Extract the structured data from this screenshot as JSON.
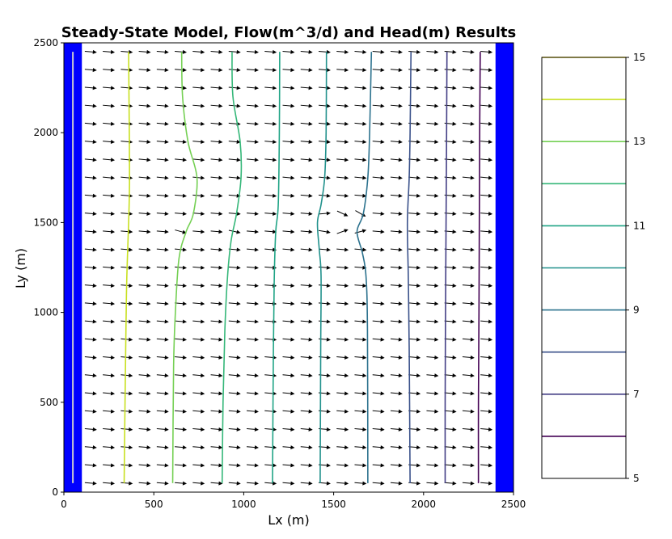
{
  "chart_data": {
    "type": "contour",
    "title": "Steady-State Model, Flow(m^3/d) and Head(m) Results",
    "xlabel": "Lx (m)",
    "ylabel": "Ly (m)",
    "xlim": [
      0,
      2500
    ],
    "ylim": [
      0,
      2500
    ],
    "xticks": [
      "0",
      "500",
      "1000",
      "1500",
      "2000",
      "2500"
    ],
    "yticks": [
      "0",
      "500",
      "1000",
      "1500",
      "2000",
      "2500"
    ],
    "boundaries": {
      "left": {
        "x": [
          0,
          100
        ],
        "color": "#0000ff"
      },
      "right": {
        "x": [
          2400,
          2500
        ],
        "color": "#0000ff"
      },
      "well_line": {
        "x": 50,
        "y": [
          50,
          2450
        ],
        "color": "#cccccc"
      }
    },
    "contours": [
      {
        "level": 14,
        "color": "#c8e020",
        "points": [
          [
            360,
            2450
          ],
          [
            362,
            2200
          ],
          [
            365,
            1750
          ],
          [
            360,
            1500
          ],
          [
            350,
            1200
          ],
          [
            345,
            900
          ],
          [
            340,
            500
          ],
          [
            335,
            50
          ]
        ]
      },
      {
        "level": 13,
        "color": "#75d054",
        "points": [
          [
            655,
            2450
          ],
          [
            660,
            2200
          ],
          [
            690,
            1950
          ],
          [
            740,
            1750
          ],
          [
            720,
            1550
          ],
          [
            680,
            1450
          ],
          [
            640,
            1300
          ],
          [
            620,
            1000
          ],
          [
            610,
            700
          ],
          [
            605,
            50
          ]
        ]
      },
      {
        "level": 12,
        "color": "#35b779",
        "points": [
          [
            935,
            2450
          ],
          [
            940,
            2200
          ],
          [
            980,
            1950
          ],
          [
            985,
            1750
          ],
          [
            960,
            1550
          ],
          [
            930,
            1400
          ],
          [
            910,
            1200
          ],
          [
            895,
            900
          ],
          [
            885,
            500
          ],
          [
            880,
            50
          ]
        ]
      },
      {
        "level": 11,
        "color": "#20a486",
        "points": [
          [
            1200,
            2450
          ],
          [
            1198,
            2000
          ],
          [
            1192,
            1600
          ],
          [
            1178,
            1450
          ],
          [
            1170,
            1200
          ],
          [
            1165,
            800
          ],
          [
            1160,
            50
          ]
        ]
      },
      {
        "level": 10,
        "color": "#21918c",
        "points": [
          [
            1460,
            2450
          ],
          [
            1458,
            2000
          ],
          [
            1450,
            1750
          ],
          [
            1430,
            1600
          ],
          [
            1410,
            1500
          ],
          [
            1420,
            1350
          ],
          [
            1430,
            1200
          ],
          [
            1428,
            800
          ],
          [
            1425,
            50
          ]
        ]
      },
      {
        "level": 9,
        "color": "#2c728e",
        "points": [
          [
            1710,
            2450
          ],
          [
            1700,
            2000
          ],
          [
            1690,
            1750
          ],
          [
            1665,
            1550
          ],
          [
            1630,
            1450
          ],
          [
            1660,
            1330
          ],
          [
            1680,
            1200
          ],
          [
            1688,
            900
          ],
          [
            1690,
            50
          ]
        ]
      },
      {
        "level": 8,
        "color": "#3b528b",
        "points": [
          [
            1930,
            2450
          ],
          [
            1925,
            2000
          ],
          [
            1920,
            1750
          ],
          [
            1910,
            1500
          ],
          [
            1915,
            1200
          ],
          [
            1920,
            800
          ],
          [
            1925,
            50
          ]
        ]
      },
      {
        "level": 7,
        "color": "#433e85",
        "points": [
          [
            2130,
            2450
          ],
          [
            2128,
            2000
          ],
          [
            2125,
            1500
          ],
          [
            2122,
            1000
          ],
          [
            2120,
            500
          ],
          [
            2120,
            50
          ]
        ]
      },
      {
        "level": 6,
        "color": "#440154",
        "points": [
          [
            2315,
            2450
          ],
          [
            2312,
            2000
          ],
          [
            2310,
            1500
          ],
          [
            2308,
            1000
          ],
          [
            2305,
            500
          ],
          [
            2305,
            50
          ]
        ]
      }
    ],
    "vector_field": {
      "x_start": 150,
      "x_step": 100,
      "x_count": 23,
      "y_start": 50,
      "y_step": 100,
      "y_count": 25,
      "default_angle_deg": -5,
      "perturbations": [
        {
          "x": 1550,
          "y": 1450,
          "angle_deg": 20
        },
        {
          "x": 1550,
          "y": 1550,
          "angle_deg": -25
        },
        {
          "x": 1650,
          "y": 1550,
          "angle_deg": -30
        },
        {
          "x": 1650,
          "y": 1450,
          "angle_deg": 15
        },
        {
          "x": 1450,
          "y": 1450,
          "angle_deg": -10
        },
        {
          "x": 1450,
          "y": 1550,
          "angle_deg": 5
        },
        {
          "x": 650,
          "y": 1450,
          "angle_deg": -15
        },
        {
          "x": 950,
          "y": 1450,
          "angle_deg": -12
        }
      ]
    },
    "colorbar": {
      "min": 5,
      "max": 15,
      "ticklabels": [
        "5",
        "7",
        "9",
        "11",
        "13",
        "15"
      ],
      "levels": [
        {
          "value": 6,
          "color": "#440154"
        },
        {
          "value": 7,
          "color": "#433e85"
        },
        {
          "value": 8,
          "color": "#3b528b"
        },
        {
          "value": 9,
          "color": "#2c728e"
        },
        {
          "value": 10,
          "color": "#21918c"
        },
        {
          "value": 11,
          "color": "#20a486"
        },
        {
          "value": 12,
          "color": "#35b779"
        },
        {
          "value": 13,
          "color": "#75d054"
        },
        {
          "value": 14,
          "color": "#c8e020"
        },
        {
          "value": 15,
          "color": "#fde725"
        }
      ]
    }
  }
}
